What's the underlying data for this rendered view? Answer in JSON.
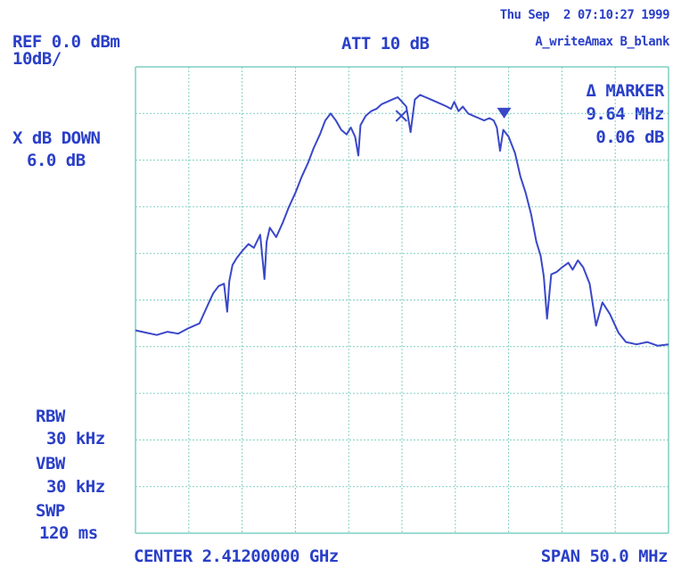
{
  "header": {
    "timestamp": "Thu Sep  2 07:10:27 1999",
    "ref_level": "REF 0.0 dBm",
    "scale": "10dB/",
    "attenuation": "ATT 10 dB",
    "trace_modes": "A_writeAmax B_blank"
  },
  "marker": {
    "title": "Δ MARKER",
    "frequency": "9.64 MHz",
    "level": "0.06 dB"
  },
  "xdb_down": {
    "label": "X dB DOWN",
    "value": "6.0 dB"
  },
  "settings": {
    "rbw_label": "RBW",
    "rbw_value": "30 kHz",
    "vbw_label": "VBW",
    "vbw_value": "30 kHz",
    "swp_label": "SWP",
    "swp_value": "120 ms"
  },
  "footer": {
    "center": "CENTER 2.41200000 GHz",
    "span": "SPAN 50.0 MHz"
  },
  "colors": {
    "trace": "#3a48c8",
    "grid": "#7fcfc0",
    "text": "#2a3fc8"
  },
  "chart_data": {
    "type": "line",
    "x_unit": "MHz",
    "y_unit": "dBm",
    "xlim": [
      2387.0,
      2437.0
    ],
    "ylim": [
      -100,
      0
    ],
    "grid": true,
    "series": [
      {
        "x": [
          2387.0,
          2388.0,
          2389.0,
          2390.0,
          2391.0,
          2392.0,
          2393.0,
          2393.6,
          2393.9,
          2394.3,
          2394.8,
          2395.3,
          2395.6,
          2395.8,
          2396.1,
          2396.5,
          2397.0,
          2397.6,
          2398.1,
          2398.7,
          2399.1,
          2399.3,
          2399.6,
          2400.2,
          2400.8,
          2401.4,
          2402.0,
          2402.6,
          2403.2,
          2403.7,
          2404.3,
          2404.8,
          2405.3,
          2405.8,
          2406.3,
          2406.8,
          2407.2,
          2407.6,
          2407.9,
          2408.1,
          2408.6,
          2409.1,
          2409.6,
          2410.1,
          2410.6,
          2411.1,
          2411.6,
          2412.0,
          2412.4,
          2412.8,
          2413.2,
          2413.7,
          2414.2,
          2414.7,
          2415.2,
          2415.7,
          2416.2,
          2416.6,
          2416.9,
          2417.3,
          2417.7,
          2418.2,
          2418.7,
          2419.2,
          2419.7,
          2420.2,
          2420.6,
          2420.9,
          2421.2,
          2421.5,
          2422.0,
          2422.6,
          2423.1,
          2423.6,
          2424.1,
          2424.6,
          2425.0,
          2425.3,
          2425.6,
          2426.0,
          2426.5,
          2427.0,
          2427.6,
          2428.0,
          2428.5,
          2429.0,
          2429.6,
          2430.2,
          2430.8,
          2431.5,
          2432.3,
          2433.0,
          2434.0,
          2435.0,
          2436.0,
          2437.0
        ],
        "y": [
          -56.5,
          -57.0,
          -57.5,
          -56.8,
          -57.2,
          -56.0,
          -55.0,
          -52.0,
          -50.5,
          -48.5,
          -47.0,
          -46.5,
          -52.5,
          -46.0,
          -42.5,
          -41.0,
          -39.5,
          -38.0,
          -38.8,
          -36.0,
          -45.5,
          -37.5,
          -34.5,
          -36.5,
          -33.5,
          -30.0,
          -27.0,
          -23.5,
          -20.5,
          -17.5,
          -14.5,
          -11.5,
          -10.0,
          -11.5,
          -13.5,
          -14.5,
          -13.0,
          -15.0,
          -19.0,
          -12.5,
          -10.5,
          -9.5,
          -9.0,
          -8.0,
          -7.5,
          -7.0,
          -6.5,
          -7.5,
          -8.5,
          -14.0,
          -7.0,
          -6.0,
          -6.5,
          -7.0,
          -7.5,
          -8.0,
          -8.5,
          -9.0,
          -7.5,
          -9.5,
          -8.5,
          -10.0,
          -10.5,
          -11.0,
          -11.5,
          -11.0,
          -11.5,
          -13.0,
          -18.0,
          -13.5,
          -15.0,
          -18.5,
          -23.5,
          -27.0,
          -31.5,
          -37.5,
          -40.5,
          -45.0,
          -54.0,
          -44.5,
          -44.0,
          -43.0,
          -42.0,
          -43.5,
          -41.5,
          -43.0,
          -46.5,
          -55.5,
          -50.5,
          -53.0,
          -57.0,
          -59.0,
          -59.5,
          -59.0,
          -59.8,
          -59.5
        ]
      }
    ],
    "markers": [
      {
        "x": 2411.94,
        "y": -10.5,
        "symbol": "x"
      },
      {
        "x": 2421.58,
        "y": -10.5,
        "symbol": "triangle-down"
      }
    ]
  }
}
